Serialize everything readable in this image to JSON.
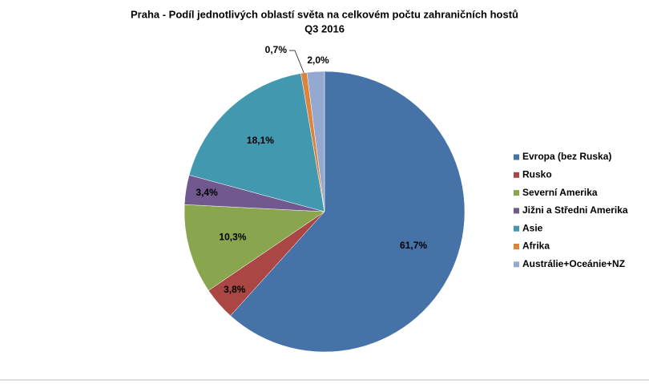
{
  "chart_data": {
    "type": "pie",
    "title": "Praha - Podíl jednotlivých oblastí světa na celkovém počtu zahraničních hostů",
    "subtitle": "Q3 2016",
    "categories": [
      "Evropa (bez Ruska)",
      "Rusko",
      "Severní Amerika",
      "Jižni a Středni Amerika",
      "Asie",
      "Afrika",
      "Austrálie+Oceánie+NZ"
    ],
    "values": [
      61.7,
      3.8,
      10.3,
      3.4,
      18.1,
      0.7,
      2.0
    ],
    "value_labels": [
      "61,7%",
      "3,8%",
      "10,3%",
      "3,4%",
      "18,1%",
      "0,7%",
      "2,0%"
    ],
    "colors": [
      "#4572a7",
      "#aa4643",
      "#89a54e",
      "#71588f",
      "#4198af",
      "#db843d",
      "#93a9cf"
    ],
    "legend": "right"
  }
}
